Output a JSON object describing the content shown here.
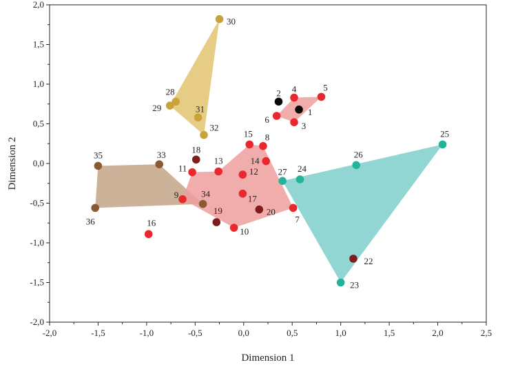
{
  "chart_data": {
    "type": "scatter",
    "title": "",
    "xlabel": "Dimension 1",
    "ylabel": "Dimension 2",
    "xlim": [
      -2.0,
      2.5
    ],
    "ylim": [
      -2.0,
      2.0
    ],
    "x_ticks": [
      "-2,0",
      "-1,5",
      "-1,0",
      "-0,5",
      "0,0",
      "0,5",
      "1,0",
      "1,5",
      "2,0",
      "2,5"
    ],
    "y_ticks": [
      "-2,0",
      "-1,5",
      "-1,0",
      "-0,5",
      "0,0",
      "0,5",
      "1,0",
      "1,5",
      "2,0"
    ],
    "grid": false,
    "colors": {
      "gold": "#c9a23a",
      "brown": "#8a5a32",
      "red": "#e8282e",
      "darkred": "#7f1d1d",
      "black": "#0a0a0a",
      "teal": "#23b39a",
      "gold_hull": "#e2c36e",
      "brown_hull": "#c4a588",
      "red_hull": "#ef9d9d",
      "teal_hull": "#7fcfcc"
    },
    "hulls": [
      {
        "color": "gold_hull",
        "points": [
          "30",
          "29",
          "32"
        ]
      },
      {
        "color": "brown_hull",
        "points": [
          "35",
          "33",
          "34",
          "36"
        ]
      },
      {
        "color": "red_hull",
        "points": [
          "6",
          "4",
          "5",
          "3"
        ]
      },
      {
        "color": "red_hull",
        "points": [
          "11",
          "13",
          "15",
          "8",
          "7",
          "10",
          "9"
        ]
      },
      {
        "color": "teal_hull",
        "points": [
          "27",
          "25",
          "23"
        ]
      }
    ],
    "points": [
      {
        "label": "1",
        "x": 0.57,
        "y": 0.68,
        "color": "black"
      },
      {
        "label": "2",
        "x": 0.36,
        "y": 0.78,
        "color": "black"
      },
      {
        "label": "3",
        "x": 0.52,
        "y": 0.52,
        "color": "red"
      },
      {
        "label": "4",
        "x": 0.52,
        "y": 0.83,
        "color": "red"
      },
      {
        "label": "5",
        "x": 0.8,
        "y": 0.84,
        "color": "red"
      },
      {
        "label": "6",
        "x": 0.34,
        "y": 0.6,
        "color": "red"
      },
      {
        "label": "7",
        "x": 0.51,
        "y": -0.56,
        "color": "red"
      },
      {
        "label": "8",
        "x": 0.2,
        "y": 0.22,
        "color": "red"
      },
      {
        "label": "9",
        "x": -0.63,
        "y": -0.45,
        "color": "red"
      },
      {
        "label": "10",
        "x": -0.1,
        "y": -0.81,
        "color": "red"
      },
      {
        "label": "11",
        "x": -0.53,
        "y": -0.11,
        "color": "red"
      },
      {
        "label": "12",
        "x": -0.01,
        "y": -0.14,
        "color": "red"
      },
      {
        "label": "13",
        "x": -0.26,
        "y": -0.1,
        "color": "red"
      },
      {
        "label": "14",
        "x": 0.23,
        "y": 0.03,
        "color": "red"
      },
      {
        "label": "15",
        "x": 0.06,
        "y": 0.24,
        "color": "red"
      },
      {
        "label": "16",
        "x": -0.98,
        "y": -0.89,
        "color": "red"
      },
      {
        "label": "17",
        "x": -0.01,
        "y": -0.38,
        "color": "red"
      },
      {
        "label": "18",
        "x": -0.49,
        "y": 0.05,
        "color": "darkred"
      },
      {
        "label": "19",
        "x": -0.28,
        "y": -0.74,
        "color": "darkred"
      },
      {
        "label": "20",
        "x": 0.16,
        "y": -0.58,
        "color": "darkred"
      },
      {
        "label": "22",
        "x": 1.13,
        "y": -1.2,
        "color": "darkred"
      },
      {
        "label": "23",
        "x": 1.0,
        "y": -1.5,
        "color": "teal"
      },
      {
        "label": "24",
        "x": 0.58,
        "y": -0.2,
        "color": "teal"
      },
      {
        "label": "25",
        "x": 2.05,
        "y": 0.24,
        "color": "teal"
      },
      {
        "label": "26",
        "x": 1.16,
        "y": -0.02,
        "color": "teal"
      },
      {
        "label": "27",
        "x": 0.4,
        "y": -0.22,
        "color": "teal"
      },
      {
        "label": "28",
        "x": -0.7,
        "y": 0.78,
        "color": "gold"
      },
      {
        "label": "29",
        "x": -0.76,
        "y": 0.73,
        "color": "gold"
      },
      {
        "label": "30",
        "x": -0.25,
        "y": 1.82,
        "color": "gold"
      },
      {
        "label": "31",
        "x": -0.47,
        "y": 0.58,
        "color": "gold"
      },
      {
        "label": "32",
        "x": -0.41,
        "y": 0.36,
        "color": "gold"
      },
      {
        "label": "33",
        "x": -0.87,
        "y": -0.01,
        "color": "brown"
      },
      {
        "label": "34",
        "x": -0.42,
        "y": -0.51,
        "color": "brown"
      },
      {
        "label": "35",
        "x": -1.5,
        "y": -0.03,
        "color": "brown"
      },
      {
        "label": "36",
        "x": -1.53,
        "y": -0.56,
        "color": "brown"
      }
    ]
  }
}
